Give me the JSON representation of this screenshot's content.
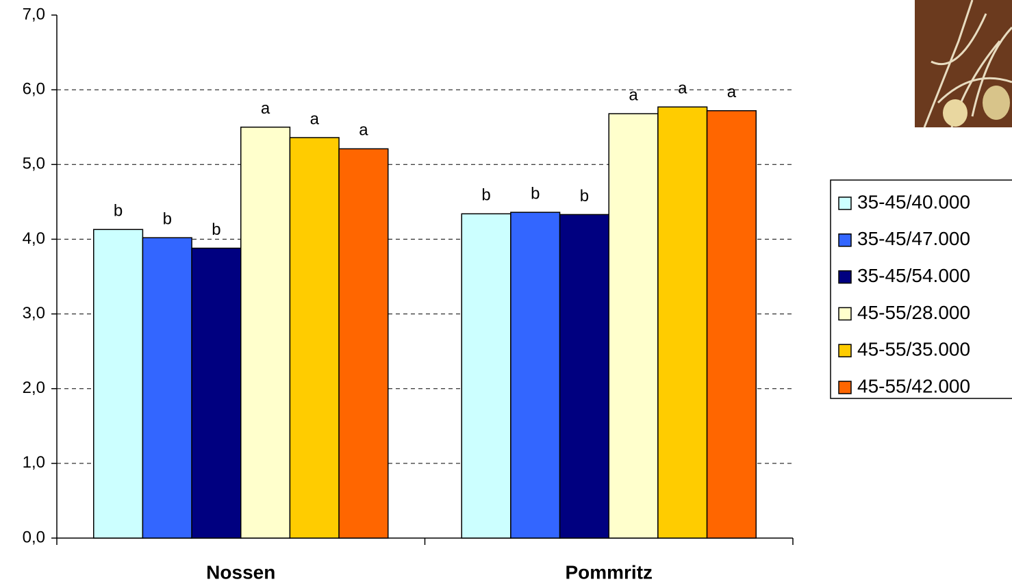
{
  "chart_data": {
    "type": "bar",
    "categories": [
      "Nossen",
      "Pommritz"
    ],
    "series": [
      {
        "name": "35-45/40.000",
        "color": "#ccffff",
        "values": [
          4.13,
          4.34
        ],
        "annotations": [
          "b",
          "b"
        ]
      },
      {
        "name": "35-45/47.000",
        "color": "#3366ff",
        "values": [
          4.02,
          4.36
        ],
        "annotations": [
          "b",
          "b"
        ]
      },
      {
        "name": "35-45/54.000",
        "color": "#000080",
        "values": [
          3.88,
          4.33
        ],
        "annotations": [
          "b",
          "b"
        ]
      },
      {
        "name": "45-55/28.000",
        "color": "#ffffcc",
        "values": [
          5.5,
          5.68
        ],
        "annotations": [
          "a",
          "a"
        ]
      },
      {
        "name": "45-55/35.000",
        "color": "#ffcc00",
        "values": [
          5.36,
          5.77
        ],
        "annotations": [
          "a",
          "a"
        ]
      },
      {
        "name": "45-55/42.000",
        "color": "#ff6600",
        "values": [
          5.21,
          5.72
        ],
        "annotations": [
          "a",
          "a"
        ]
      }
    ],
    "ylim": [
      0,
      7
    ],
    "yticks": [
      {
        "value": 0,
        "label": "0,0"
      },
      {
        "value": 1,
        "label": "1,0"
      },
      {
        "value": 2,
        "label": "2,0"
      },
      {
        "value": 3,
        "label": "3,0"
      },
      {
        "value": 4,
        "label": "4,0"
      },
      {
        "value": 5,
        "label": "5,0"
      },
      {
        "value": 6,
        "label": "6,0"
      },
      {
        "value": 7,
        "label": "7,0"
      }
    ],
    "grid": true,
    "legend": "right"
  }
}
